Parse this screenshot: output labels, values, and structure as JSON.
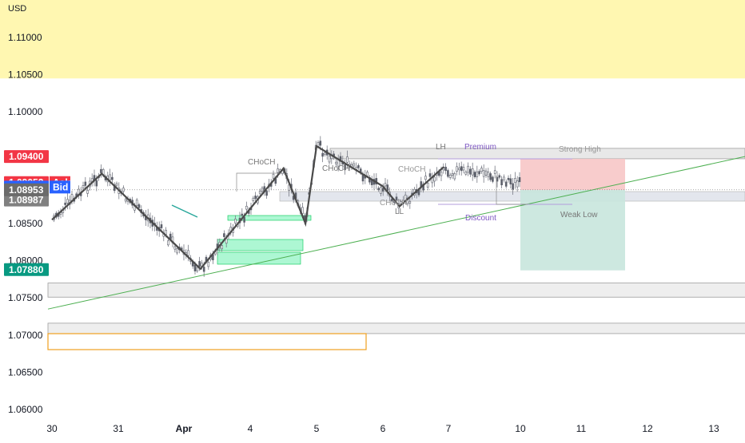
{
  "currency": "USD",
  "colors": {
    "candle": "#787b86",
    "zigzag": "#4a4a4a",
    "trendline": "#4caf50",
    "supply": "#fff59d",
    "green_zone": "#69f0ae",
    "stop_zone": "#f7c6c6",
    "target_zone": "#c8e6dd",
    "gray_zone": "#e0e3eb",
    "orange_box": "#f0a020",
    "ask": "#f23645",
    "bid": "#2962ff",
    "neutral": "#808080",
    "green_badge": "#089981"
  },
  "price_labels": {
    "high": "1.09400",
    "ask_price": "1.09052",
    "ask_label": "Ask",
    "bid_price": "1.08987",
    "bid_label": "Bid",
    "last_price": "1.08987",
    "current_price": "1.08953",
    "low": "1.07880"
  },
  "chart_data": {
    "type": "candlestick",
    "y_axis": {
      "ticks": [
        "1.11000",
        "1.10500",
        "1.10000",
        "1.08500",
        "1.08000",
        "1.07500",
        "1.07000",
        "1.06500",
        "1.06000"
      ],
      "range": [
        1.057,
        1.1165
      ]
    },
    "x_axis": {
      "ticks": [
        "30",
        "31",
        "Apr",
        "4",
        "5",
        "6",
        "7",
        "10",
        "11",
        "12",
        "13"
      ]
    },
    "zigzag": [
      {
        "x": "Mar 30 00:00",
        "y": 1.0855
      },
      {
        "x": "Mar 30 18:00",
        "y": 1.0917
      },
      {
        "x": "Apr 3 06:00",
        "y": 1.0789
      },
      {
        "x": "Apr 4 12:00",
        "y": 1.0924
      },
      {
        "x": "Apr 4 20:00",
        "y": 1.085
      },
      {
        "x": "Apr 5 00:00",
        "y": 1.0954
      },
      {
        "x": "Apr 6 00:00",
        "y": 1.09
      },
      {
        "x": "Apr 6 06:00",
        "y": 1.0873
      },
      {
        "x": "Apr 6 22:00",
        "y": 1.0926
      }
    ],
    "trendline": {
      "from": {
        "x": "Mar 30 00:00",
        "y": 1.0735
      },
      "to": {
        "x": "Apr 13 08:00",
        "y": 1.094
      }
    },
    "zones": [
      {
        "name": "supply",
        "from": 1.1045,
        "to": 1.1165
      },
      {
        "name": "resistance",
        "from": 1.0937,
        "to": 1.0951
      },
      {
        "name": "support-1",
        "from": 1.0751,
        "to": 1.077
      },
      {
        "name": "support-2",
        "from": 1.0702,
        "to": 1.0716
      }
    ],
    "position": {
      "entry": 1.0895,
      "stop": 1.0937,
      "target": 1.0787
    },
    "annotations": [
      "CHoCH",
      "CHoCH",
      "CHoCH",
      "CHoCH",
      "LH",
      "LL",
      "Premium",
      "Discount",
      "Strong High",
      "Weak Low"
    ]
  }
}
